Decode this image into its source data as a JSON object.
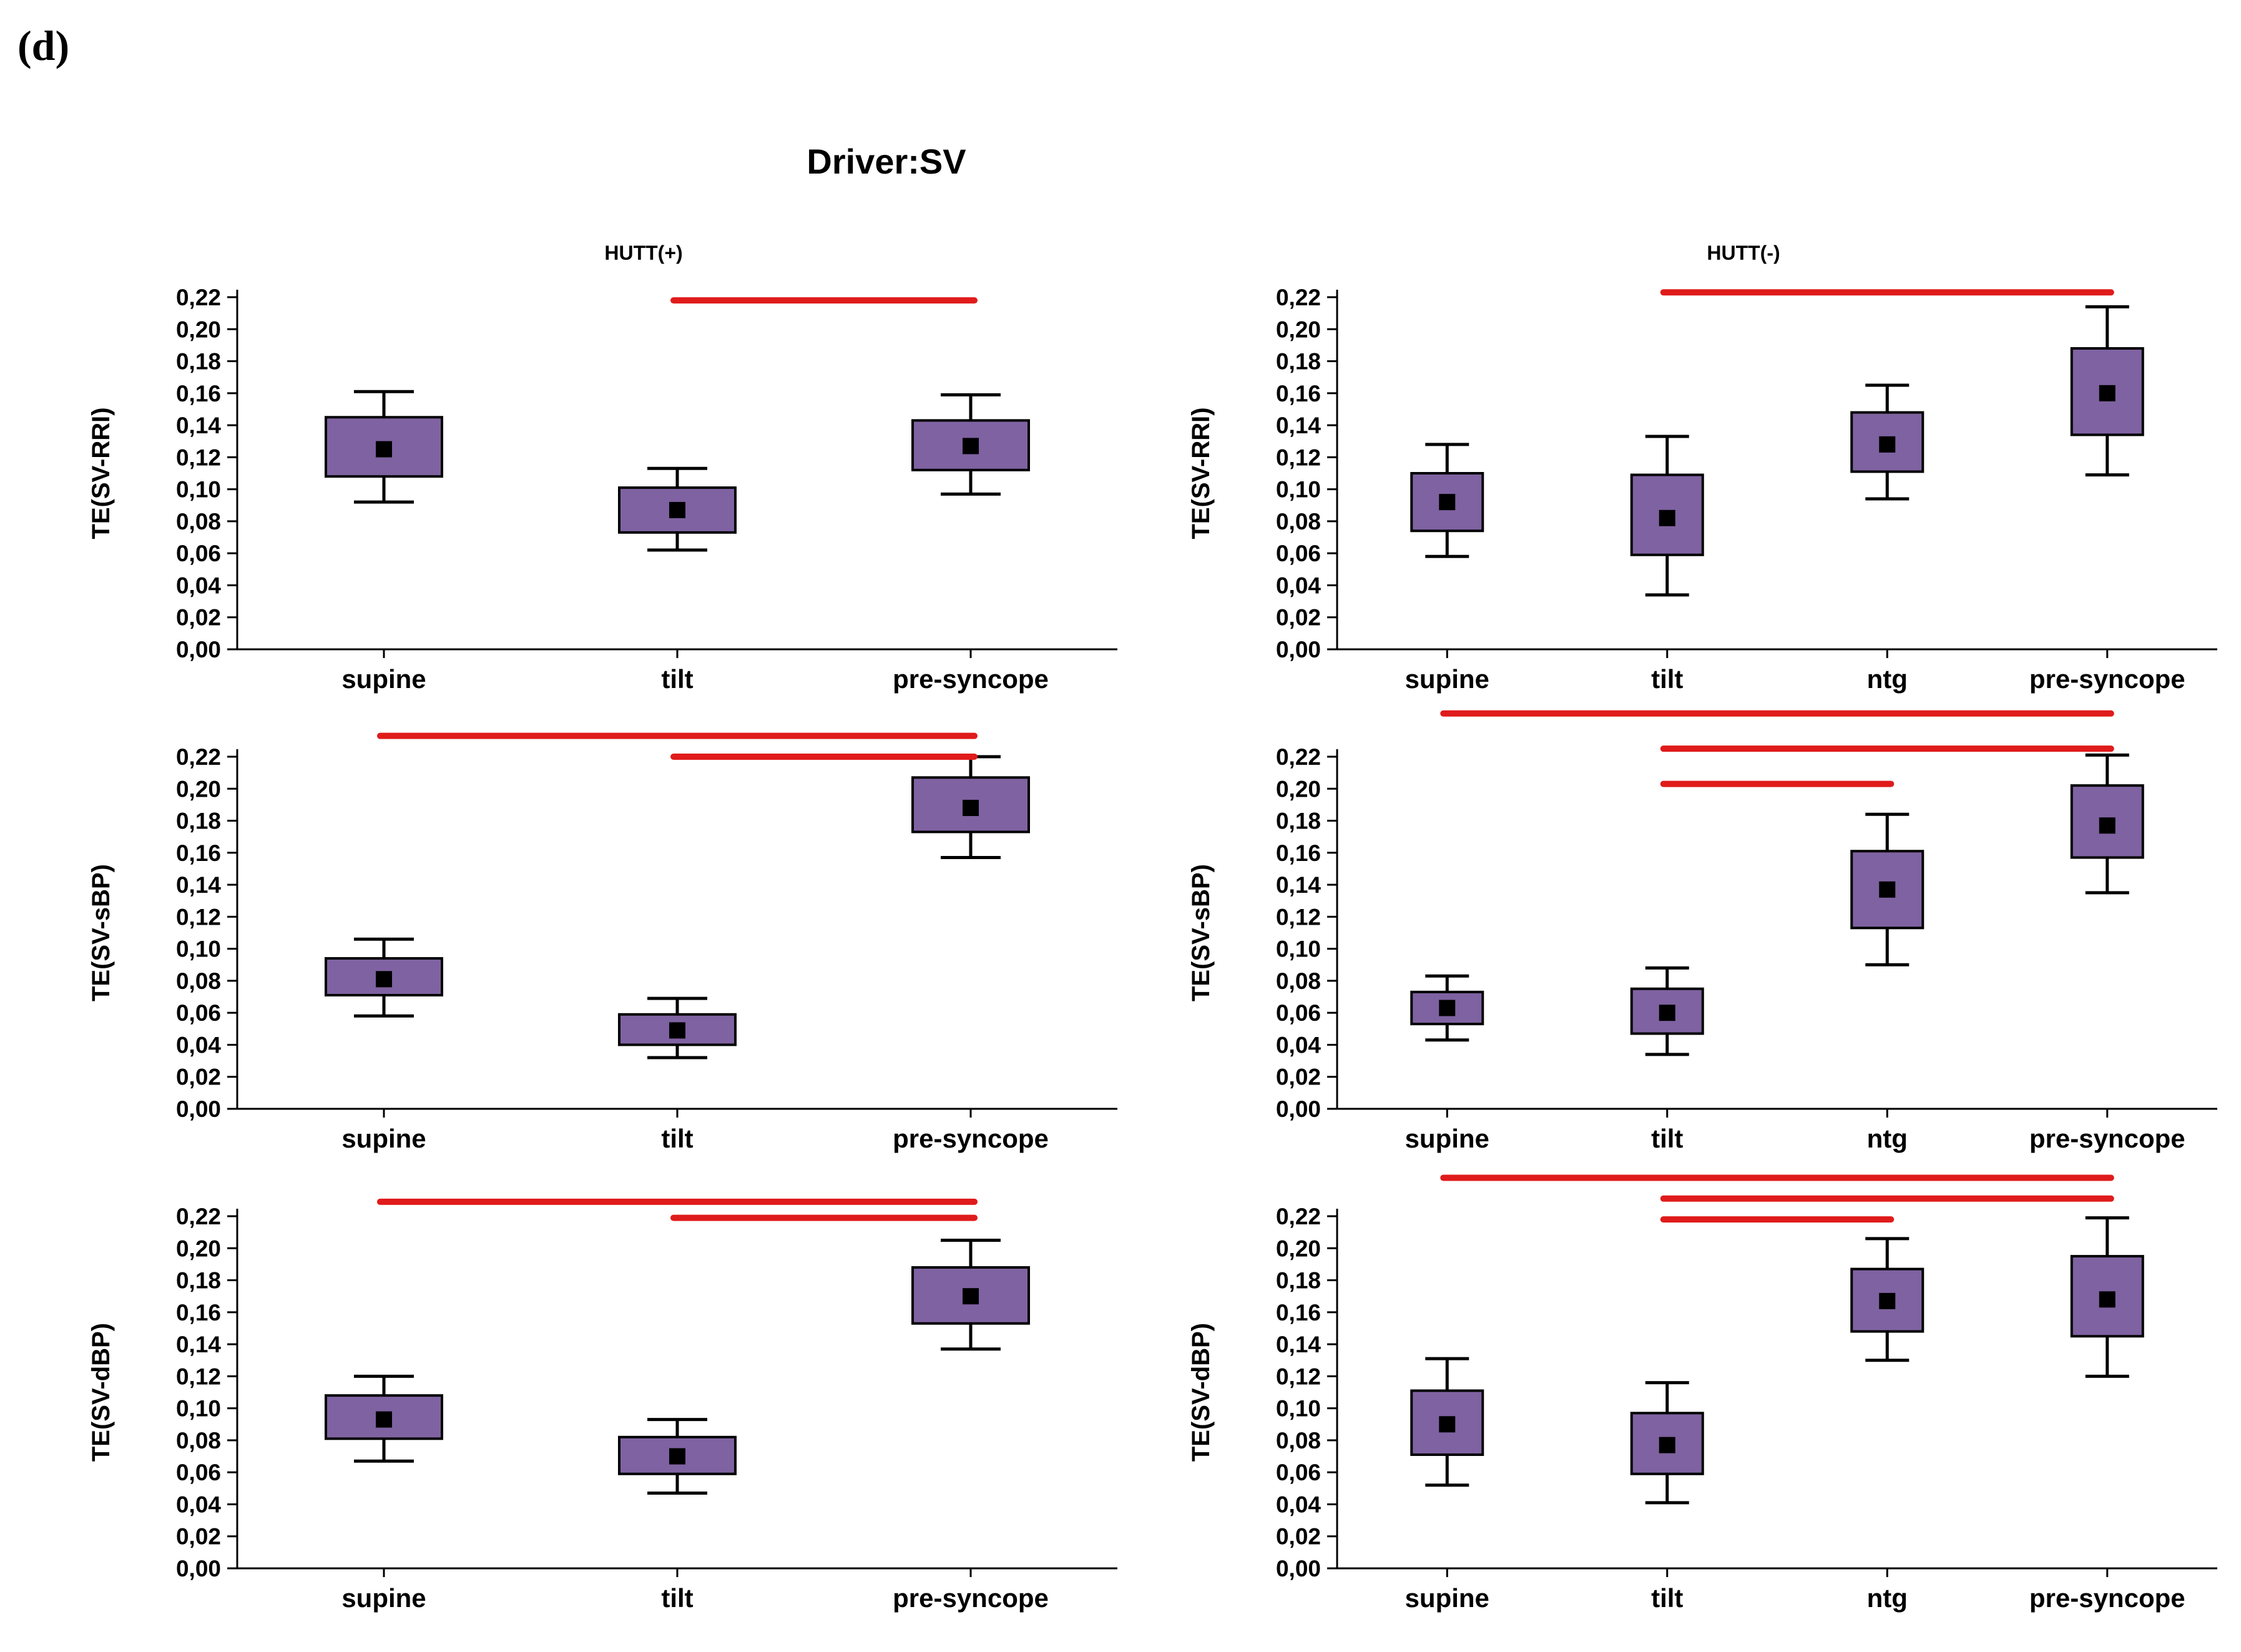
{
  "panel_label": "(d)",
  "title": "Driver:SV",
  "colors": {
    "box": "#7f62a1",
    "box_edge": "#000000",
    "median": "#000000",
    "whisker": "#000000",
    "significance": "#e01b1b"
  },
  "chart_data": [
    {
      "id": "hutt-pos-rri",
      "type": "box",
      "group_title": "HUTT(+)",
      "ylabel": "TE(SV-RRI)",
      "ylim": [
        0,
        0.22
      ],
      "yticks": [
        "0,00",
        "0,02",
        "0,04",
        "0,06",
        "0,08",
        "0,10",
        "0,12",
        "0,14",
        "0,16",
        "0,18",
        "0,20",
        "0,22"
      ],
      "categories": [
        "supine",
        "tilt",
        "pre-syncope"
      ],
      "boxes": [
        {
          "median": 0.125,
          "q1": 0.108,
          "q3": 0.145,
          "low": 0.092,
          "high": 0.161
        },
        {
          "median": 0.087,
          "q1": 0.073,
          "q3": 0.101,
          "low": 0.062,
          "high": 0.113
        },
        {
          "median": 0.127,
          "q1": 0.112,
          "q3": 0.143,
          "low": 0.097,
          "high": 0.159
        }
      ],
      "significance": [
        {
          "from": "tilt",
          "to": "pre-syncope",
          "y": 0.218
        }
      ]
    },
    {
      "id": "hutt-neg-rri",
      "type": "box",
      "group_title": "HUTT(-)",
      "ylabel": "TE(SV-RRI)",
      "ylim": [
        0,
        0.22
      ],
      "yticks": [
        "0,00",
        "0,02",
        "0,04",
        "0,06",
        "0,08",
        "0,10",
        "0,12",
        "0,14",
        "0,16",
        "0,18",
        "0,20",
        "0,22"
      ],
      "categories": [
        "supine",
        "tilt",
        "ntg",
        "pre-syncope"
      ],
      "boxes": [
        {
          "median": 0.092,
          "q1": 0.074,
          "q3": 0.11,
          "low": 0.058,
          "high": 0.128
        },
        {
          "median": 0.082,
          "q1": 0.059,
          "q3": 0.109,
          "low": 0.034,
          "high": 0.133
        },
        {
          "median": 0.128,
          "q1": 0.111,
          "q3": 0.148,
          "low": 0.094,
          "high": 0.165
        },
        {
          "median": 0.16,
          "q1": 0.134,
          "q3": 0.188,
          "low": 0.109,
          "high": 0.214
        }
      ],
      "significance": [
        {
          "from": "tilt",
          "to": "pre-syncope",
          "y": 0.223
        }
      ]
    },
    {
      "id": "hutt-pos-sbp",
      "type": "box",
      "group_title": "",
      "ylabel": "TE(SV-sBP)",
      "ylim": [
        0,
        0.22
      ],
      "yticks": [
        "0,00",
        "0,02",
        "0,04",
        "0,06",
        "0,08",
        "0,10",
        "0,12",
        "0,14",
        "0,16",
        "0,18",
        "0,20",
        "0,22"
      ],
      "categories": [
        "supine",
        "tilt",
        "pre-syncope"
      ],
      "boxes": [
        {
          "median": 0.081,
          "q1": 0.071,
          "q3": 0.094,
          "low": 0.058,
          "high": 0.106
        },
        {
          "median": 0.049,
          "q1": 0.04,
          "q3": 0.059,
          "low": 0.032,
          "high": 0.069
        },
        {
          "median": 0.188,
          "q1": 0.173,
          "q3": 0.207,
          "low": 0.157,
          "high": 0.22
        }
      ],
      "significance": [
        {
          "from": "supine",
          "to": "pre-syncope",
          "y": 0.233
        },
        {
          "from": "tilt",
          "to": "pre-syncope",
          "y": 0.22
        }
      ]
    },
    {
      "id": "hutt-neg-sbp",
      "type": "box",
      "group_title": "",
      "ylabel": "TE(SV-sBP)",
      "ylim": [
        0,
        0.22
      ],
      "yticks": [
        "0,00",
        "0,02",
        "0,04",
        "0,06",
        "0,08",
        "0,10",
        "0,12",
        "0,14",
        "0,16",
        "0,18",
        "0,20",
        "0,22"
      ],
      "categories": [
        "supine",
        "tilt",
        "ntg",
        "pre-syncope"
      ],
      "boxes": [
        {
          "median": 0.063,
          "q1": 0.053,
          "q3": 0.073,
          "low": 0.043,
          "high": 0.083
        },
        {
          "median": 0.06,
          "q1": 0.047,
          "q3": 0.075,
          "low": 0.034,
          "high": 0.088
        },
        {
          "median": 0.137,
          "q1": 0.113,
          "q3": 0.161,
          "low": 0.09,
          "high": 0.184
        },
        {
          "median": 0.177,
          "q1": 0.157,
          "q3": 0.202,
          "low": 0.135,
          "high": 0.221
        }
      ],
      "significance": [
        {
          "from": "supine",
          "to": "pre-syncope",
          "y": 0.247
        },
        {
          "from": "tilt",
          "to": "pre-syncope",
          "y": 0.225
        },
        {
          "from": "tilt",
          "to": "ntg",
          "y": 0.203
        }
      ]
    },
    {
      "id": "hutt-pos-dbp",
      "type": "box",
      "group_title": "",
      "ylabel": "TE(SV-dBP)",
      "ylim": [
        0,
        0.22
      ],
      "yticks": [
        "0,00",
        "0,02",
        "0,04",
        "0,06",
        "0,08",
        "0,10",
        "0,12",
        "0,14",
        "0,16",
        "0,18",
        "0,20",
        "0,22"
      ],
      "categories": [
        "supine",
        "tilt",
        "pre-syncope"
      ],
      "boxes": [
        {
          "median": 0.093,
          "q1": 0.081,
          "q3": 0.108,
          "low": 0.067,
          "high": 0.12
        },
        {
          "median": 0.07,
          "q1": 0.059,
          "q3": 0.082,
          "low": 0.047,
          "high": 0.093
        },
        {
          "median": 0.17,
          "q1": 0.153,
          "q3": 0.188,
          "low": 0.137,
          "high": 0.205
        }
      ],
      "significance": [
        {
          "from": "supine",
          "to": "pre-syncope",
          "y": 0.229
        },
        {
          "from": "tilt",
          "to": "pre-syncope",
          "y": 0.219
        }
      ]
    },
    {
      "id": "hutt-neg-dbp",
      "type": "box",
      "group_title": "",
      "ylabel": "TE(SV-dBP)",
      "ylim": [
        0,
        0.22
      ],
      "yticks": [
        "0,00",
        "0,02",
        "0,04",
        "0,06",
        "0,08",
        "0,10",
        "0,12",
        "0,14",
        "0,16",
        "0,18",
        "0,20",
        "0,22"
      ],
      "categories": [
        "supine",
        "tilt",
        "ntg",
        "pre-syncope"
      ],
      "boxes": [
        {
          "median": 0.09,
          "q1": 0.071,
          "q3": 0.111,
          "low": 0.052,
          "high": 0.131
        },
        {
          "median": 0.077,
          "q1": 0.059,
          "q3": 0.097,
          "low": 0.041,
          "high": 0.116
        },
        {
          "median": 0.167,
          "q1": 0.148,
          "q3": 0.187,
          "low": 0.13,
          "high": 0.206
        },
        {
          "median": 0.168,
          "q1": 0.145,
          "q3": 0.195,
          "low": 0.12,
          "high": 0.219
        }
      ],
      "significance": [
        {
          "from": "supine",
          "to": "pre-syncope",
          "y": 0.244
        },
        {
          "from": "tilt",
          "to": "pre-syncope",
          "y": 0.231
        },
        {
          "from": "tilt",
          "to": "ntg",
          "y": 0.218
        }
      ]
    }
  ]
}
